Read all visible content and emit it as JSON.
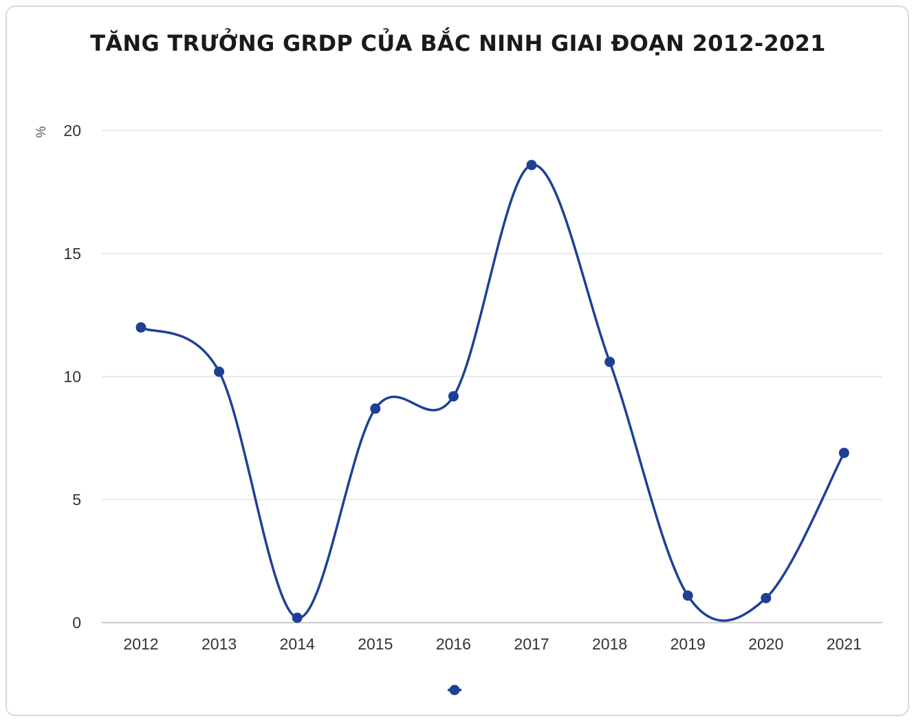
{
  "chart_data": {
    "type": "line",
    "title": "TĂNG TRƯỞNG GRDP CỦA BẮC NINH GIAI ĐOẠN 2012-2021",
    "ylabel": "%",
    "xlabel": "",
    "ylim": [
      0,
      20
    ],
    "yticks": [
      "0",
      "5",
      "10",
      "15",
      "20"
    ],
    "categories": [
      "2012",
      "2013",
      "2014",
      "2015",
      "2016",
      "2017",
      "2018",
      "2019",
      "2020",
      "2021"
    ],
    "series": [
      {
        "values": [
          12.0,
          10.2,
          0.2,
          8.7,
          9.2,
          18.6,
          10.6,
          1.1,
          1.0,
          6.9
        ]
      }
    ],
    "grid": true,
    "smooth": true,
    "legend": "bottom-center",
    "colors": {
      "line": "#1f3f97",
      "grid": "#e3e3e3",
      "axis": "#cccccc"
    }
  }
}
